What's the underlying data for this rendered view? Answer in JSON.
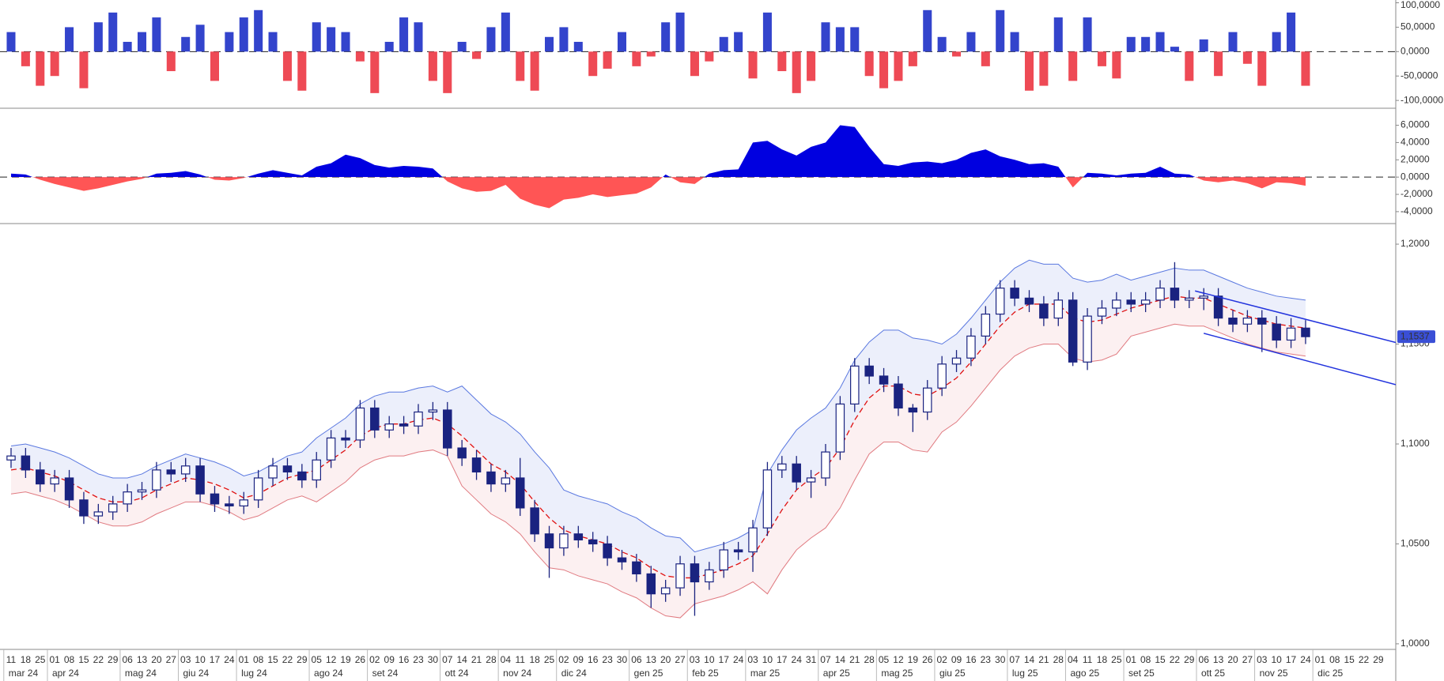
{
  "x_axis": {
    "xlim": [
      -0.76,
      95.2
    ],
    "months": [
      {
        "label": "mar 24",
        "days": [
          "11",
          "18",
          "25"
        ]
      },
      {
        "label": "apr 24",
        "days": [
          "01",
          "08",
          "15",
          "22",
          "29"
        ]
      },
      {
        "label": "mag 24",
        "days": [
          "06",
          "13",
          "20",
          "27"
        ]
      },
      {
        "label": "giu 24",
        "days": [
          "03",
          "10",
          "17",
          "24"
        ]
      },
      {
        "label": "lug 24",
        "days": [
          "01",
          "08",
          "15",
          "22",
          "29"
        ]
      },
      {
        "label": "ago 24",
        "days": [
          "05",
          "12",
          "19",
          "26"
        ]
      },
      {
        "label": "set 24",
        "days": [
          "02",
          "09",
          "16",
          "23",
          "30"
        ]
      },
      {
        "label": "ott 24",
        "days": [
          "07",
          "14",
          "21",
          "28"
        ]
      },
      {
        "label": "nov 24",
        "days": [
          "04",
          "11",
          "18",
          "25"
        ]
      },
      {
        "label": "dic 24",
        "days": [
          "02",
          "09",
          "16",
          "23",
          "30"
        ]
      },
      {
        "label": "gen 25",
        "days": [
          "06",
          "13",
          "20",
          "27"
        ]
      },
      {
        "label": "feb 25",
        "days": [
          "03",
          "10",
          "17",
          "24"
        ]
      },
      {
        "label": "mar 25",
        "days": [
          "03",
          "10",
          "17",
          "24",
          "31"
        ]
      },
      {
        "label": "apr 25",
        "days": [
          "07",
          "14",
          "21",
          "28"
        ]
      },
      {
        "label": "mag 25",
        "days": [
          "05",
          "12",
          "19",
          "26"
        ]
      },
      {
        "label": "giu 25",
        "days": [
          "02",
          "09",
          "16",
          "23",
          "30"
        ]
      },
      {
        "label": "lug 25",
        "days": [
          "07",
          "14",
          "21",
          "28"
        ]
      },
      {
        "label": "ago 25",
        "days": [
          "04",
          "11",
          "18",
          "25"
        ]
      },
      {
        "label": "set 25",
        "days": [
          "01",
          "08",
          "15",
          "22",
          "29"
        ]
      },
      {
        "label": "ott 25",
        "days": [
          "06",
          "13",
          "20",
          "27"
        ]
      },
      {
        "label": "nov 25",
        "days": [
          "03",
          "10",
          "17",
          "24"
        ]
      },
      {
        "label": "dic 25",
        "days": [
          "01",
          "08",
          "15",
          "22",
          "29"
        ]
      }
    ]
  },
  "chart_data": [
    {
      "type": "bar",
      "colors": {
        "positive": "#3344cc",
        "negative": "#ee4a55"
      },
      "ylim": [
        -116000,
        105700
      ],
      "yticks": [
        {
          "value": 100000,
          "label": "100,0000"
        },
        {
          "value": 50000,
          "label": "50,0000"
        },
        {
          "value": 0,
          "label": "0,0000"
        },
        {
          "value": -50000,
          "label": "-50,0000"
        },
        {
          "value": -100000,
          "label": "-100,0000"
        }
      ],
      "values": [
        40000,
        -30000,
        -70000,
        -50000,
        50000,
        -75000,
        60000,
        80000,
        20000,
        40000,
        70000,
        -40000,
        30000,
        55000,
        -60000,
        40000,
        70000,
        85000,
        40000,
        -60000,
        -80000,
        60000,
        50000,
        40000,
        -20000,
        -85000,
        20000,
        70000,
        60000,
        -60000,
        -85000,
        20000,
        -15000,
        50000,
        80000,
        -60000,
        -80000,
        30000,
        50000,
        20000,
        -50000,
        -35000,
        40000,
        -30000,
        -10000,
        60000,
        80000,
        -50000,
        -20000,
        30000,
        40000,
        -55000,
        80000,
        -40000,
        -85000,
        -60000,
        60000,
        50000,
        50000,
        -50000,
        -75000,
        -60000,
        -30000,
        85000,
        30000,
        -10000,
        40000,
        -30000,
        85000,
        40000,
        -80000,
        -70000,
        70000,
        -60000,
        70000,
        -30000,
        -55000,
        30000,
        30000,
        40000,
        10000,
        -60000,
        25000,
        -50000,
        40000,
        -25000,
        -70000,
        40000,
        80000,
        -70000
      ]
    },
    {
      "type": "area",
      "colors": {
        "positive": "#0000e0",
        "negative": "#ff5555"
      },
      "ylim": [
        -5.38,
        7.97
      ],
      "yticks": [
        {
          "value": 6,
          "label": "6,0000"
        },
        {
          "value": 4,
          "label": "4,0000"
        },
        {
          "value": 2,
          "label": "2,0000"
        },
        {
          "value": 0,
          "label": "0,0000"
        },
        {
          "value": -2,
          "label": "-2,0000"
        },
        {
          "value": -4,
          "label": "-4,0000"
        }
      ],
      "values": [
        0.4,
        0.3,
        -0.3,
        -0.8,
        -1.2,
        -1.6,
        -1.3,
        -0.9,
        -0.5,
        -0.2,
        0.4,
        0.5,
        0.7,
        0.3,
        -0.3,
        -0.4,
        -0.1,
        0.4,
        0.8,
        0.5,
        0.2,
        1.2,
        1.6,
        2.6,
        2.2,
        1.4,
        1.1,
        1.3,
        1.2,
        1.0,
        -0.5,
        -1.3,
        -1.7,
        -1.6,
        -0.9,
        -2.5,
        -3.2,
        -3.6,
        -2.6,
        -2.4,
        -2.0,
        -2.3,
        -2.1,
        -1.9,
        -1.2,
        0.3,
        -0.6,
        -0.8,
        0.4,
        0.8,
        0.9,
        4.0,
        4.2,
        3.2,
        2.5,
        3.5,
        4.0,
        6.0,
        5.8,
        3.5,
        1.5,
        1.3,
        1.7,
        1.8,
        1.6,
        2.0,
        2.8,
        3.2,
        2.4,
        2.0,
        1.5,
        1.6,
        1.2,
        -1.2,
        0.5,
        0.4,
        0.2,
        0.4,
        0.5,
        1.2,
        0.4,
        0.3,
        -0.4,
        -0.6,
        -0.4,
        -0.7,
        -1.3,
        -0.6,
        -0.7,
        -1.0
      ]
    },
    {
      "type": "candlestick",
      "color": "#1a2380",
      "ylim": [
        0.9972,
        1.2103
      ],
      "yticks": [
        {
          "value": 1.2,
          "label": "1,2000"
        },
        {
          "value": 1.15,
          "label": "1,1500"
        },
        {
          "value": 1.1,
          "label": "1,1000"
        },
        {
          "value": 1.05,
          "label": "1,0500"
        },
        {
          "value": 1.0,
          "label": "1,0000"
        }
      ],
      "last_price": {
        "value": 1.1537,
        "label": "1,1537"
      },
      "open": [
        1.092,
        1.094,
        1.087,
        1.08,
        1.083,
        1.072,
        1.064,
        1.066,
        1.07,
        1.076,
        1.077,
        1.087,
        1.085,
        1.089,
        1.075,
        1.07,
        1.069,
        1.072,
        1.083,
        1.089,
        1.086,
        1.082,
        1.092,
        1.103,
        1.102,
        1.118,
        1.107,
        1.11,
        1.109,
        1.116,
        1.117,
        1.098,
        1.093,
        1.086,
        1.08,
        1.083,
        1.068,
        1.055,
        1.048,
        1.055,
        1.052,
        1.05,
        1.043,
        1.041,
        1.035,
        1.025,
        1.028,
        1.04,
        1.031,
        1.037,
        1.047,
        1.046,
        1.058,
        1.087,
        1.09,
        1.081,
        1.083,
        1.096,
        1.12,
        1.139,
        1.134,
        1.13,
        1.118,
        1.116,
        1.128,
        1.14,
        1.143,
        1.154,
        1.165,
        1.178,
        1.173,
        1.17,
        1.163,
        1.172,
        1.141,
        1.164,
        1.168,
        1.172,
        1.17,
        1.172,
        1.178,
        1.172,
        1.173,
        1.174,
        1.163,
        1.16,
        1.163,
        1.16,
        1.152,
        1.158
      ],
      "high": [
        1.098,
        1.098,
        1.091,
        1.087,
        1.087,
        1.076,
        1.07,
        1.074,
        1.08,
        1.081,
        1.091,
        1.091,
        1.093,
        1.093,
        1.079,
        1.074,
        1.076,
        1.087,
        1.093,
        1.093,
        1.09,
        1.096,
        1.107,
        1.107,
        1.122,
        1.122,
        1.114,
        1.114,
        1.12,
        1.121,
        1.121,
        1.102,
        1.097,
        1.09,
        1.087,
        1.093,
        1.072,
        1.059,
        1.059,
        1.059,
        1.056,
        1.054,
        1.047,
        1.045,
        1.039,
        1.032,
        1.044,
        1.044,
        1.041,
        1.051,
        1.051,
        1.062,
        1.091,
        1.094,
        1.094,
        1.087,
        1.1,
        1.124,
        1.143,
        1.143,
        1.138,
        1.134,
        1.12,
        1.132,
        1.144,
        1.147,
        1.158,
        1.169,
        1.182,
        1.182,
        1.177,
        1.174,
        1.176,
        1.176,
        1.168,
        1.172,
        1.176,
        1.176,
        1.176,
        1.182,
        1.191,
        1.177,
        1.178,
        1.178,
        1.167,
        1.167,
        1.167,
        1.164,
        1.163,
        1.162
      ],
      "low": [
        1.088,
        1.083,
        1.076,
        1.076,
        1.068,
        1.06,
        1.06,
        1.062,
        1.066,
        1.072,
        1.073,
        1.081,
        1.081,
        1.071,
        1.066,
        1.065,
        1.065,
        1.068,
        1.079,
        1.082,
        1.078,
        1.078,
        1.088,
        1.098,
        1.098,
        1.103,
        1.103,
        1.105,
        1.105,
        1.112,
        1.094,
        1.089,
        1.082,
        1.076,
        1.076,
        1.064,
        1.051,
        1.033,
        1.044,
        1.048,
        1.046,
        1.039,
        1.037,
        1.031,
        1.018,
        1.021,
        1.024,
        1.014,
        1.027,
        1.033,
        1.042,
        1.036,
        1.054,
        1.083,
        1.077,
        1.073,
        1.079,
        1.092,
        1.116,
        1.13,
        1.126,
        1.114,
        1.106,
        1.112,
        1.124,
        1.136,
        1.139,
        1.15,
        1.161,
        1.169,
        1.166,
        1.159,
        1.159,
        1.139,
        1.137,
        1.16,
        1.164,
        1.166,
        1.166,
        1.168,
        1.168,
        1.168,
        1.167,
        1.159,
        1.156,
        1.156,
        1.146,
        1.148,
        1.148,
        1.15
      ],
      "close": [
        1.094,
        1.087,
        1.08,
        1.083,
        1.072,
        1.064,
        1.066,
        1.07,
        1.076,
        1.077,
        1.087,
        1.085,
        1.089,
        1.075,
        1.07,
        1.069,
        1.072,
        1.083,
        1.089,
        1.086,
        1.082,
        1.092,
        1.103,
        1.102,
        1.118,
        1.107,
        1.11,
        1.109,
        1.116,
        1.117,
        1.098,
        1.093,
        1.086,
        1.08,
        1.083,
        1.068,
        1.055,
        1.048,
        1.055,
        1.052,
        1.05,
        1.043,
        1.041,
        1.035,
        1.025,
        1.028,
        1.04,
        1.031,
        1.037,
        1.047,
        1.046,
        1.058,
        1.087,
        1.09,
        1.081,
        1.083,
        1.096,
        1.12,
        1.139,
        1.134,
        1.13,
        1.118,
        1.116,
        1.128,
        1.14,
        1.143,
        1.154,
        1.165,
        1.178,
        1.173,
        1.17,
        1.163,
        1.172,
        1.141,
        1.164,
        1.168,
        1.172,
        1.17,
        1.172,
        1.178,
        1.172,
        1.173,
        1.174,
        1.163,
        1.16,
        1.163,
        1.16,
        1.152,
        1.158,
        1.1537
      ],
      "bands": {
        "upper": [
          1.099,
          1.1,
          1.098,
          1.096,
          1.093,
          1.089,
          1.085,
          1.083,
          1.083,
          1.085,
          1.089,
          1.092,
          1.095,
          1.093,
          1.091,
          1.088,
          1.084,
          1.086,
          1.09,
          1.094,
          1.096,
          1.103,
          1.108,
          1.113,
          1.12,
          1.124,
          1.126,
          1.126,
          1.128,
          1.129,
          1.126,
          1.129,
          1.122,
          1.115,
          1.111,
          1.105,
          1.096,
          1.088,
          1.077,
          1.074,
          1.072,
          1.07,
          1.066,
          1.063,
          1.058,
          1.054,
          1.053,
          1.046,
          1.048,
          1.05,
          1.053,
          1.057,
          1.085,
          1.097,
          1.107,
          1.113,
          1.118,
          1.128,
          1.142,
          1.151,
          1.157,
          1.157,
          1.153,
          1.152,
          1.15,
          1.155,
          1.163,
          1.172,
          1.181,
          1.188,
          1.192,
          1.19,
          1.19,
          1.183,
          1.181,
          1.182,
          1.185,
          1.182,
          1.184,
          1.186,
          1.188,
          1.187,
          1.187,
          1.184,
          1.181,
          1.178,
          1.176,
          1.174,
          1.173,
          1.172
        ],
        "middle": [
          1.087,
          1.088,
          1.086,
          1.084,
          1.081,
          1.077,
          1.073,
          1.071,
          1.071,
          1.073,
          1.077,
          1.08,
          1.083,
          1.082,
          1.08,
          1.077,
          1.073,
          1.075,
          1.079,
          1.083,
          1.085,
          1.087,
          1.092,
          1.097,
          1.104,
          1.108,
          1.11,
          1.11,
          1.112,
          1.113,
          1.11,
          1.104,
          1.097,
          1.09,
          1.086,
          1.08,
          1.071,
          1.063,
          1.057,
          1.054,
          1.052,
          1.05,
          1.046,
          1.043,
          1.038,
          1.034,
          1.033,
          1.033,
          1.035,
          1.037,
          1.04,
          1.044,
          1.055,
          1.067,
          1.077,
          1.083,
          1.088,
          1.098,
          1.112,
          1.123,
          1.129,
          1.129,
          1.125,
          1.124,
          1.128,
          1.133,
          1.141,
          1.15,
          1.159,
          1.166,
          1.17,
          1.17,
          1.17,
          1.163,
          1.161,
          1.162,
          1.165,
          1.168,
          1.17,
          1.172,
          1.174,
          1.173,
          1.173,
          1.17,
          1.167,
          1.164,
          1.162,
          1.16,
          1.159,
          1.158
        ],
        "lower": [
          1.075,
          1.076,
          1.074,
          1.072,
          1.069,
          1.065,
          1.061,
          1.059,
          1.059,
          1.061,
          1.065,
          1.068,
          1.071,
          1.071,
          1.069,
          1.066,
          1.062,
          1.064,
          1.068,
          1.072,
          1.074,
          1.071,
          1.076,
          1.081,
          1.088,
          1.092,
          1.094,
          1.094,
          1.096,
          1.097,
          1.094,
          1.079,
          1.072,
          1.065,
          1.061,
          1.055,
          1.046,
          1.038,
          1.037,
          1.034,
          1.032,
          1.03,
          1.026,
          1.023,
          1.018,
          1.014,
          1.013,
          1.02,
          1.022,
          1.024,
          1.027,
          1.031,
          1.025,
          1.037,
          1.047,
          1.053,
          1.058,
          1.068,
          1.082,
          1.095,
          1.101,
          1.101,
          1.097,
          1.096,
          1.106,
          1.111,
          1.119,
          1.128,
          1.137,
          1.144,
          1.148,
          1.15,
          1.15,
          1.143,
          1.141,
          1.142,
          1.145,
          1.154,
          1.156,
          1.158,
          1.16,
          1.159,
          1.159,
          1.156,
          1.153,
          1.15,
          1.148,
          1.146,
          1.145,
          1.144
        ]
      },
      "trendlines": [
        {
          "x": [
            81.4,
            95.2
          ],
          "y": [
            1.1766,
            1.1508
          ]
        },
        {
          "x": [
            82.0,
            95.2
          ],
          "y": [
            1.1554,
            1.1297
          ]
        }
      ]
    }
  ]
}
